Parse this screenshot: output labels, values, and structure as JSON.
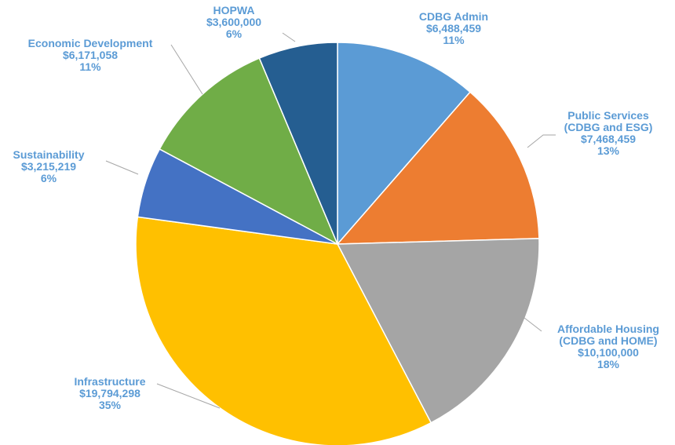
{
  "chart_data": {
    "type": "pie",
    "categories": [
      "CDBG Admin",
      "Public Services\n(CDBG and ESG)",
      "Affordable Housing\n(CDBG and HOME)",
      "Infrastructure",
      "Sustainability",
      "Economic Development",
      "HOPWA"
    ],
    "values": [
      6488459,
      7468459,
      10100000,
      19794298,
      3215219,
      6171058,
      3600000
    ],
    "value_labels": [
      "$6,488,459",
      "$7,468,459",
      "$10,100,000",
      "$19,794,298",
      "$3,215,219",
      "$6,171,058",
      "$3,600,000"
    ],
    "percent_labels": [
      "11%",
      "13%",
      "18%",
      "35%",
      "6%",
      "11%",
      "6%"
    ],
    "colors": [
      "#5B9BD5",
      "#ED7D31",
      "#A5A5A5",
      "#FFC000",
      "#4472C4",
      "#70AD47",
      "#255E91"
    ]
  }
}
